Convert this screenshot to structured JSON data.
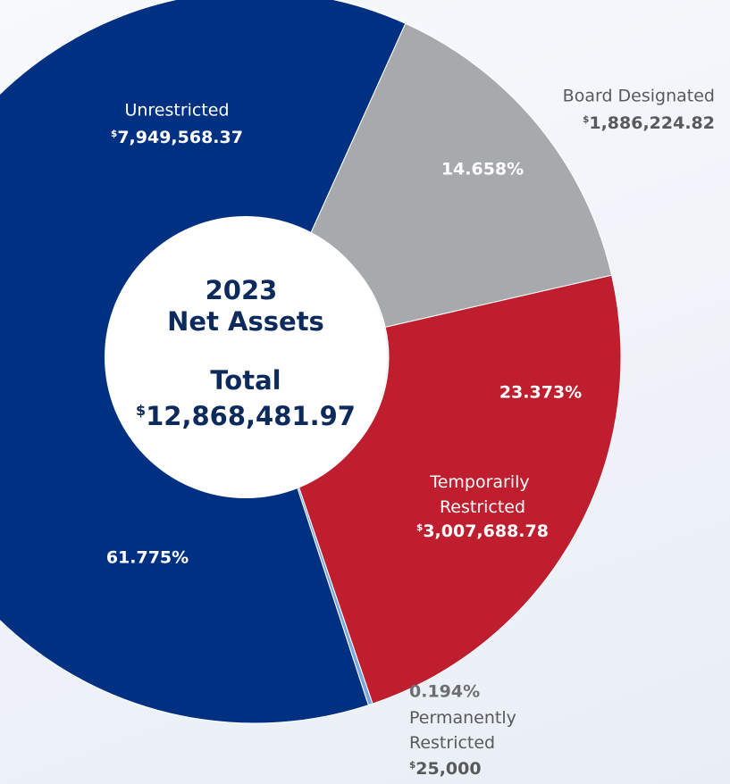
{
  "chart_data": {
    "type": "donut",
    "title": "2023 Net Assets",
    "total_label": "Total",
    "total": "$12,868,481.97",
    "categories": [
      "Board Designated",
      "Temporarily Restricted",
      "Permanently Restricted",
      "Unrestricted"
    ],
    "values": [
      14.658,
      23.373,
      0.194,
      61.775
    ],
    "value_labels": [
      "14.658%",
      "23.373%",
      "0.194%",
      "61.775%"
    ],
    "amounts": [
      "$1,886,224.82",
      "$3,007,688.78",
      "$25,000",
      "$7,949,568.37"
    ],
    "colors": [
      "#a7a9ac",
      "#be1e2d",
      "#7aa7e0",
      "#003082"
    ]
  }
}
